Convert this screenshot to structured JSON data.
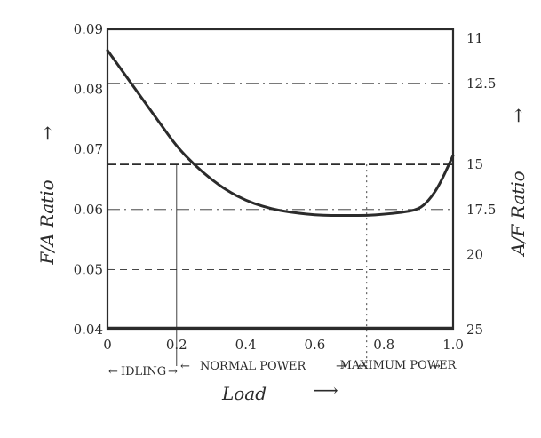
{
  "chart_data": {
    "type": "line",
    "xlabel": "Load",
    "ylabel_left": "F/A Ratio",
    "ylabel_right": "A/F Ratio",
    "xlim": [
      0,
      1.0
    ],
    "ylim": [
      0.04,
      0.09
    ],
    "x_ticks": [
      "0",
      "0.2",
      "0.4",
      "0.6",
      "0.8",
      "1.0"
    ],
    "y_ticks_left": [
      "0.04",
      "0.05",
      "0.06",
      "0.07",
      "0.08",
      "0.09"
    ],
    "y_ticks_right": [
      "25",
      "20",
      "17.5",
      "15",
      "12.5",
      "11"
    ],
    "regions": [
      {
        "label": "IDLING",
        "x_start": 0,
        "x_end": 0.2
      },
      {
        "label": "NORMAL POWER",
        "x_start": 0.2,
        "x_end": 0.75
      },
      {
        "label": "MAXIMUM POWER",
        "x_start": 0.75,
        "x_end": 1.0
      }
    ],
    "series": [
      {
        "x": [
          0,
          0.05,
          0.1,
          0.15,
          0.2,
          0.25,
          0.3,
          0.35,
          0.4,
          0.45,
          0.5,
          0.55,
          0.6,
          0.65,
          0.7,
          0.75,
          0.8,
          0.85,
          0.9,
          0.93,
          0.96,
          1.0
        ],
        "y": [
          0.0865,
          0.0825,
          0.0785,
          0.0745,
          0.0705,
          0.0675,
          0.065,
          0.063,
          0.0615,
          0.0605,
          0.0598,
          0.0594,
          0.0591,
          0.059,
          0.059,
          0.059,
          0.0592,
          0.0595,
          0.06,
          0.0615,
          0.064,
          0.069
        ]
      }
    ],
    "reference_lines": [
      {
        "axis": "y",
        "value": 0.081,
        "style": "dash-dot"
      },
      {
        "axis": "y",
        "value": 0.0675,
        "style": "dashed-bold"
      },
      {
        "axis": "y",
        "value": 0.06,
        "style": "dash-dot"
      },
      {
        "axis": "y",
        "value": 0.05,
        "style": "dashed"
      },
      {
        "axis": "x",
        "value": 0.2,
        "style": "thin"
      },
      {
        "axis": "x",
        "value": 0.75,
        "style": "dotted"
      }
    ],
    "colors": {
      "ink": "#2b2b2b",
      "paper": "#ffffff"
    }
  }
}
